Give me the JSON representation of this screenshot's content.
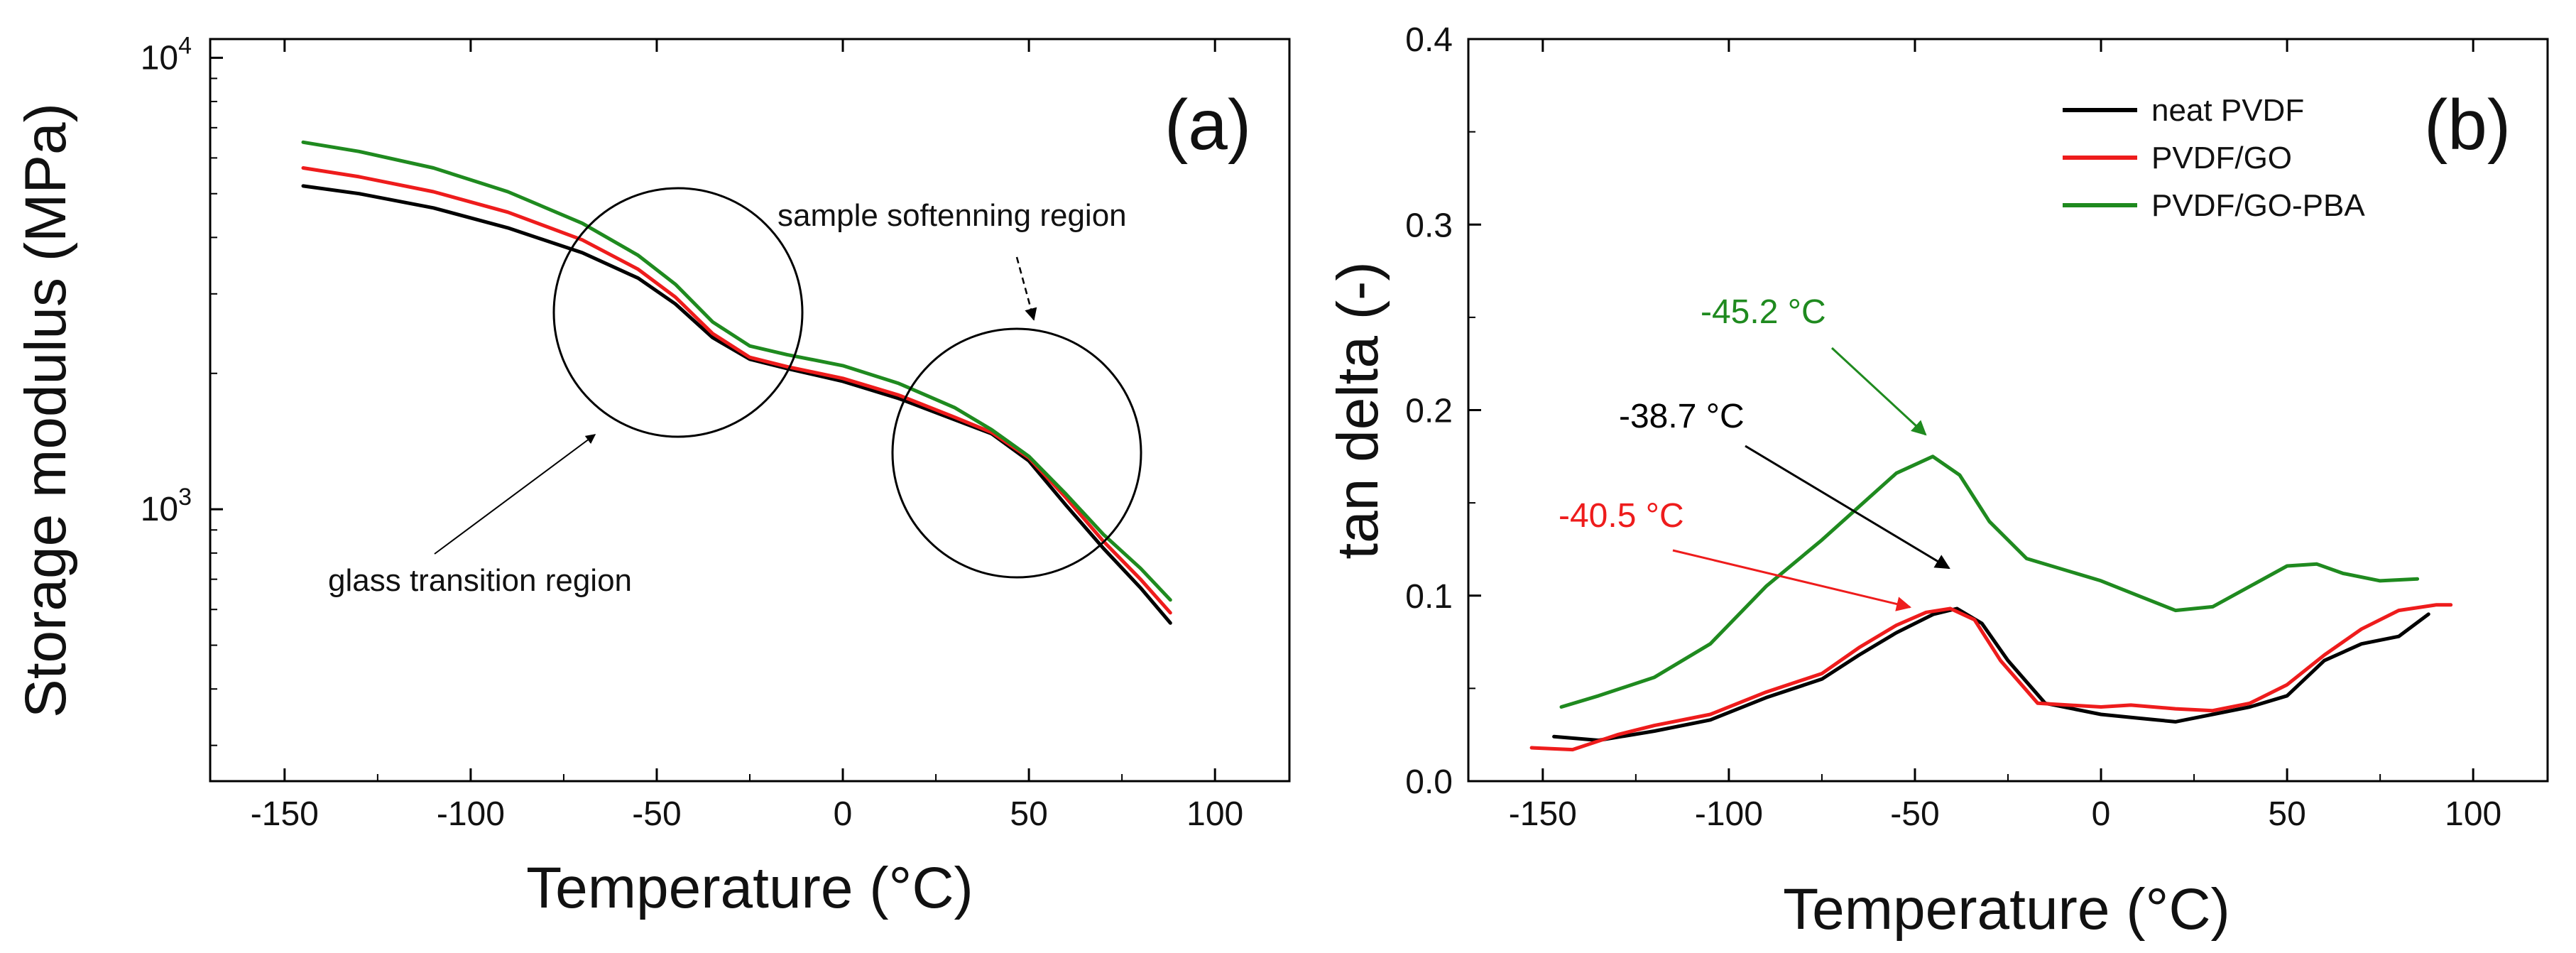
{
  "chart_data": [
    {
      "type": "line",
      "panel_label": "(a)",
      "xlabel": "Temperature (°C)",
      "ylabel": "Storage modulus (MPa)",
      "yscale": "log",
      "xlim": [
        -170,
        120
      ],
      "ylim": [
        250,
        11000
      ],
      "x_ticks": [
        -150,
        -100,
        -50,
        0,
        50,
        100
      ],
      "y_ticks": [
        {
          "value": 1000,
          "base": "10",
          "exp": "3"
        },
        {
          "value": 10000,
          "base": "10",
          "exp": "4"
        }
      ],
      "series": [
        {
          "name": "neat PVDF",
          "color": "#000000",
          "points": [
            [
              -145,
              5200
            ],
            [
              -130,
              5000
            ],
            [
              -110,
              4650
            ],
            [
              -90,
              4200
            ],
            [
              -70,
              3700
            ],
            [
              -55,
              3250
            ],
            [
              -45,
              2850
            ],
            [
              -35,
              2400
            ],
            [
              -25,
              2150
            ],
            [
              -15,
              2050
            ],
            [
              0,
              1920
            ],
            [
              15,
              1760
            ],
            [
              30,
              1580
            ],
            [
              40,
              1470
            ],
            [
              50,
              1280
            ],
            [
              60,
              1020
            ],
            [
              70,
              820
            ],
            [
              80,
              670
            ],
            [
              88,
              560
            ]
          ]
        },
        {
          "name": "PVDF/GO",
          "color": "#ee1c1c",
          "points": [
            [
              -145,
              5700
            ],
            [
              -130,
              5450
            ],
            [
              -110,
              5050
            ],
            [
              -90,
              4550
            ],
            [
              -70,
              3950
            ],
            [
              -55,
              3400
            ],
            [
              -45,
              2950
            ],
            [
              -35,
              2450
            ],
            [
              -25,
              2170
            ],
            [
              -15,
              2070
            ],
            [
              0,
              1950
            ],
            [
              15,
              1790
            ],
            [
              30,
              1600
            ],
            [
              40,
              1480
            ],
            [
              50,
              1300
            ],
            [
              60,
              1060
            ],
            [
              70,
              850
            ],
            [
              80,
              700
            ],
            [
              88,
              590
            ]
          ]
        },
        {
          "name": "PVDF/GO-PBA",
          "color": "#1f8a1f",
          "points": [
            [
              -145,
              6500
            ],
            [
              -130,
              6200
            ],
            [
              -110,
              5700
            ],
            [
              -90,
              5050
            ],
            [
              -70,
              4300
            ],
            [
              -55,
              3650
            ],
            [
              -45,
              3150
            ],
            [
              -35,
              2600
            ],
            [
              -25,
              2300
            ],
            [
              -15,
              2200
            ],
            [
              0,
              2080
            ],
            [
              15,
              1900
            ],
            [
              30,
              1680
            ],
            [
              40,
              1500
            ],
            [
              50,
              1310
            ],
            [
              60,
              1080
            ],
            [
              70,
              880
            ],
            [
              80,
              740
            ],
            [
              88,
              630
            ]
          ]
        }
      ],
      "annotations": [
        {
          "text": "sample softenning region"
        },
        {
          "text": "glass transition region"
        }
      ]
    },
    {
      "type": "line",
      "panel_label": "(b)",
      "xlabel": "Temperature (°C)",
      "ylabel": "tan delta (-)",
      "xlim": [
        -170,
        120
      ],
      "ylim": [
        0,
        0.4
      ],
      "x_ticks": [
        -150,
        -100,
        -50,
        0,
        50,
        100
      ],
      "y_ticks": [
        0.0,
        0.1,
        0.2,
        0.3,
        0.4
      ],
      "y_tick_labels": [
        "0.0",
        "0.1",
        "0.2",
        "0.3",
        "0.4"
      ],
      "series": [
        {
          "name": "neat PVDF",
          "color": "#000000",
          "points": [
            [
              -147,
              0.024
            ],
            [
              -135,
              0.022
            ],
            [
              -120,
              0.027
            ],
            [
              -105,
              0.033
            ],
            [
              -90,
              0.045
            ],
            [
              -75,
              0.055
            ],
            [
              -65,
              0.068
            ],
            [
              -55,
              0.08
            ],
            [
              -45,
              0.09
            ],
            [
              -38.7,
              0.093
            ],
            [
              -32,
              0.085
            ],
            [
              -25,
              0.065
            ],
            [
              -15,
              0.042
            ],
            [
              0,
              0.036
            ],
            [
              10,
              0.034
            ],
            [
              20,
              0.032
            ],
            [
              30,
              0.036
            ],
            [
              40,
              0.04
            ],
            [
              50,
              0.046
            ],
            [
              60,
              0.065
            ],
            [
              70,
              0.074
            ],
            [
              80,
              0.078
            ],
            [
              88,
              0.09
            ]
          ]
        },
        {
          "name": "PVDF/GO",
          "color": "#ee1c1c",
          "points": [
            [
              -153,
              0.018
            ],
            [
              -142,
              0.017
            ],
            [
              -130,
              0.025
            ],
            [
              -120,
              0.03
            ],
            [
              -105,
              0.036
            ],
            [
              -90,
              0.048
            ],
            [
              -75,
              0.058
            ],
            [
              -65,
              0.072
            ],
            [
              -55,
              0.084
            ],
            [
              -47,
              0.091
            ],
            [
              -40.5,
              0.093
            ],
            [
              -34,
              0.087
            ],
            [
              -27,
              0.065
            ],
            [
              -17,
              0.042
            ],
            [
              0,
              0.04
            ],
            [
              8,
              0.041
            ],
            [
              20,
              0.039
            ],
            [
              30,
              0.038
            ],
            [
              40,
              0.042
            ],
            [
              50,
              0.052
            ],
            [
              60,
              0.068
            ],
            [
              70,
              0.082
            ],
            [
              80,
              0.092
            ],
            [
              90,
              0.095
            ],
            [
              94,
              0.095
            ]
          ]
        },
        {
          "name": "PVDF/GO-PBA",
          "color": "#1f8a1f",
          "points": [
            [
              -145,
              0.04
            ],
            [
              -135,
              0.046
            ],
            [
              -120,
              0.056
            ],
            [
              -105,
              0.074
            ],
            [
              -90,
              0.105
            ],
            [
              -75,
              0.13
            ],
            [
              -65,
              0.148
            ],
            [
              -55,
              0.166
            ],
            [
              -45.2,
              0.175
            ],
            [
              -38,
              0.165
            ],
            [
              -30,
              0.14
            ],
            [
              -20,
              0.12
            ],
            [
              0,
              0.108
            ],
            [
              10,
              0.1
            ],
            [
              20,
              0.092
            ],
            [
              30,
              0.094
            ],
            [
              40,
              0.105
            ],
            [
              50,
              0.116
            ],
            [
              58,
              0.117
            ],
            [
              65,
              0.112
            ],
            [
              75,
              0.108
            ],
            [
              85,
              0.109
            ]
          ]
        }
      ],
      "legend": [
        "neat PVDF",
        "PVDF/GO",
        "PVDF/GO-PBA"
      ],
      "peak_annotations": [
        {
          "text": "-45.2 °C",
          "color": "#1f8a1f"
        },
        {
          "text": "-38.7 °C",
          "color": "#000000"
        },
        {
          "text": "-40.5 °C",
          "color": "#ee1c1c"
        }
      ]
    }
  ]
}
